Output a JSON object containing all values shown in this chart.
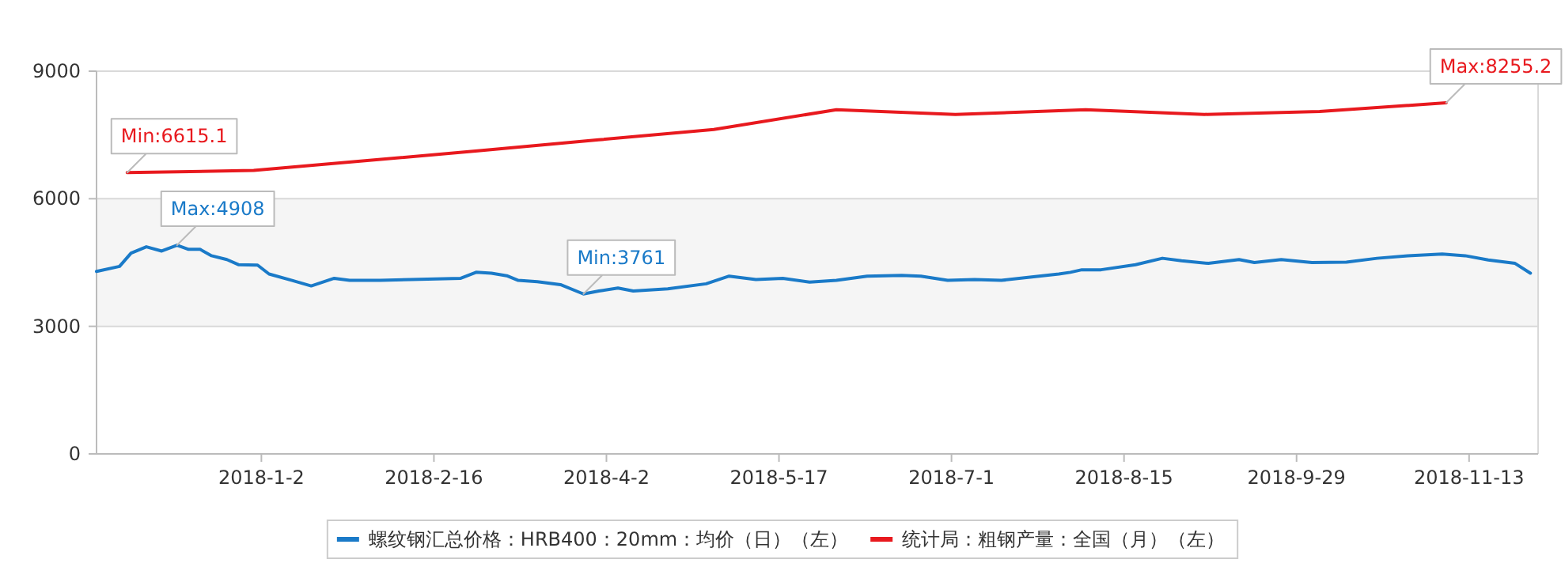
{
  "chart_data": {
    "type": "line",
    "xlim": [
      "2017-11-20",
      "2018-12-01"
    ],
    "xticks": [
      {
        "value": "2018-01-02",
        "label": "2018-1-2"
      },
      {
        "value": "2018-02-16",
        "label": "2018-2-16"
      },
      {
        "value": "2018-04-02",
        "label": "2018-4-2"
      },
      {
        "value": "2018-05-17",
        "label": "2018-5-17"
      },
      {
        "value": "2018-07-01",
        "label": "2018-7-1"
      },
      {
        "value": "2018-08-15",
        "label": "2018-8-15"
      },
      {
        "value": "2018-09-29",
        "label": "2018-9-29"
      },
      {
        "value": "2018-11-13",
        "label": "2018-11-13"
      }
    ],
    "ylim": [
      0,
      9000
    ],
    "yticks": [
      0,
      3000,
      6000,
      9000
    ],
    "grid": "y",
    "legend": "bottom",
    "marker": "none",
    "line_style": "solid",
    "bands": [
      {
        "axis": "y",
        "from": 3000,
        "to": 6000,
        "color": "#f5f5f5"
      }
    ],
    "series": [
      {
        "name": "螺纹钢汇总价格：HRB400：20mm：均价（日）（左）",
        "color": "#1a7ac8",
        "x": [
          "2017-11-20",
          "2017-11-26",
          "2017-11-29",
          "2017-12-03",
          "2017-12-07",
          "2017-12-11",
          "2017-12-14",
          "2017-12-17",
          "2017-12-20",
          "2017-12-24",
          "2017-12-27",
          "2018-01-01",
          "2018-01-04",
          "2018-01-10",
          "2018-01-15",
          "2018-01-21",
          "2018-01-25",
          "2018-02-02",
          "2018-02-10",
          "2018-02-23",
          "2018-02-27",
          "2018-03-03",
          "2018-03-07",
          "2018-03-10",
          "2018-03-15",
          "2018-03-21",
          "2018-03-27",
          "2018-03-31",
          "2018-04-05",
          "2018-04-09",
          "2018-04-18",
          "2018-04-28",
          "2018-05-04",
          "2018-05-11",
          "2018-05-18",
          "2018-05-25",
          "2018-06-01",
          "2018-06-09",
          "2018-06-18",
          "2018-06-23",
          "2018-06-30",
          "2018-07-07",
          "2018-07-14",
          "2018-07-21",
          "2018-07-29",
          "2018-08-01",
          "2018-08-04",
          "2018-08-09",
          "2018-08-18",
          "2018-08-25",
          "2018-08-30",
          "2018-09-06",
          "2018-09-14",
          "2018-09-18",
          "2018-09-25",
          "2018-10-03",
          "2018-10-12",
          "2018-10-20",
          "2018-10-28",
          "2018-11-06",
          "2018-11-12",
          "2018-11-18",
          "2018-11-25",
          "2018-11-29"
        ],
        "values": [
          4290,
          4410,
          4720,
          4870,
          4770,
          4908,
          4810,
          4810,
          4660,
          4570,
          4450,
          4440,
          4230,
          4080,
          3950,
          4130,
          4080,
          4080,
          4100,
          4130,
          4270,
          4250,
          4190,
          4080,
          4050,
          3980,
          3761,
          3830,
          3900,
          3830,
          3880,
          4000,
          4180,
          4100,
          4130,
          4040,
          4080,
          4180,
          4200,
          4180,
          4080,
          4100,
          4080,
          4150,
          4230,
          4270,
          4330,
          4330,
          4450,
          4600,
          4540,
          4480,
          4570,
          4500,
          4570,
          4500,
          4510,
          4600,
          4660,
          4700,
          4660,
          4560,
          4480,
          4250
        ]
      },
      {
        "name": "统计局：粗钢产量：全国（月）（左）",
        "color": "#e8191e",
        "x": [
          "2017-11-28",
          "2017-12-31",
          "2018-02-28",
          "2018-03-31",
          "2018-04-30",
          "2018-06-01",
          "2018-07-02",
          "2018-08-05",
          "2018-09-05",
          "2018-10-05",
          "2018-11-07"
        ],
        "values": [
          6615.1,
          6665,
          7130,
          7386,
          7630,
          8093,
          7983,
          8093,
          7983,
          8050,
          8255.2
        ]
      }
    ],
    "annotations": [
      {
        "text": "Min:6615.1",
        "x": "2017-11-28",
        "y": 6615.1
      },
      {
        "text": "Max:4908",
        "x": "2017-12-11",
        "y": 4908
      },
      {
        "text": "Min:3761",
        "x": "2018-03-27",
        "y": 3761
      },
      {
        "text": "Max:8255.2",
        "x": "2018-11-07",
        "y": 8255.2
      }
    ]
  }
}
